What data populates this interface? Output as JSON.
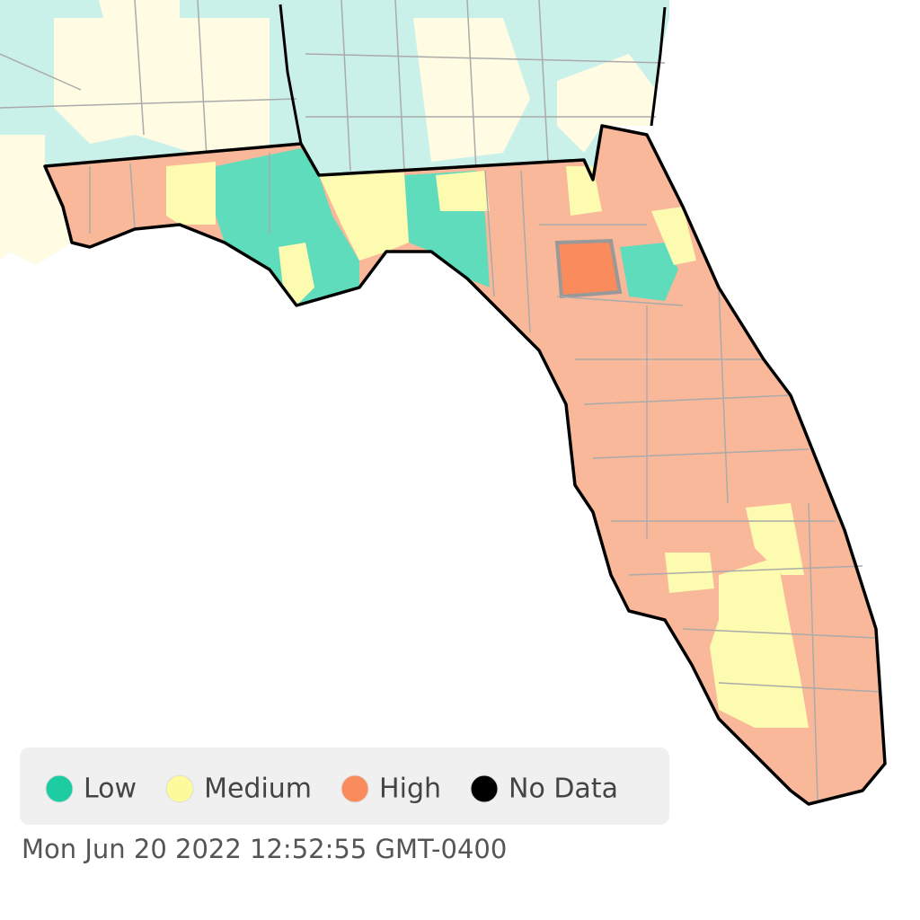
{
  "legend": {
    "items": [
      {
        "label": "Low",
        "color": "#1dcca0"
      },
      {
        "label": "Medium",
        "color": "#fdfa9c"
      },
      {
        "label": "High",
        "color": "#f98b5c"
      },
      {
        "label": "No Data",
        "color": "#000000"
      }
    ]
  },
  "timestamp": "Mon Jun 20 2022 12:52:55 GMT-0400"
}
